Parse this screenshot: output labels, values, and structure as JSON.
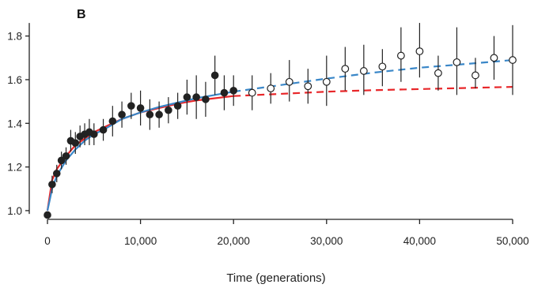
{
  "chart_data": {
    "type": "scatter",
    "panel_label": "B",
    "xlabel": "Time (generations)",
    "ylabel": "",
    "xlim": [
      0,
      50000
    ],
    "ylim": [
      0.96,
      1.9
    ],
    "x_ticks": [
      {
        "value": 0,
        "label": "0"
      },
      {
        "value": 10000,
        "label": "10,000"
      },
      {
        "value": 20000,
        "label": "20,000"
      },
      {
        "value": 30000,
        "label": "30,000"
      },
      {
        "value": 40000,
        "label": "40,000"
      },
      {
        "value": 50000,
        "label": "50,000"
      }
    ],
    "y_ticks": [
      {
        "value": 1.0,
        "label": "1.0"
      },
      {
        "value": 1.2,
        "label": "1.2"
      },
      {
        "value": 1.4,
        "label": "1.4"
      },
      {
        "value": 1.6,
        "label": "1.6"
      },
      {
        "value": 1.8,
        "label": "1.8"
      }
    ],
    "grid": false,
    "series": [
      {
        "marker": "filled-circle",
        "color": "#222222",
        "points": [
          {
            "x": 0,
            "y": 0.98,
            "lo": 0.98,
            "hi": 0.98
          },
          {
            "x": 500,
            "y": 1.12,
            "lo": 1.08,
            "hi": 1.16
          },
          {
            "x": 1000,
            "y": 1.17,
            "lo": 1.13,
            "hi": 1.21
          },
          {
            "x": 1500,
            "y": 1.23,
            "lo": 1.19,
            "hi": 1.27
          },
          {
            "x": 2000,
            "y": 1.25,
            "lo": 1.21,
            "hi": 1.29
          },
          {
            "x": 2500,
            "y": 1.32,
            "lo": 1.27,
            "hi": 1.37
          },
          {
            "x": 3000,
            "y": 1.31,
            "lo": 1.26,
            "hi": 1.36
          },
          {
            "x": 3500,
            "y": 1.34,
            "lo": 1.29,
            "hi": 1.39
          },
          {
            "x": 4000,
            "y": 1.35,
            "lo": 1.3,
            "hi": 1.4
          },
          {
            "x": 4500,
            "y": 1.36,
            "lo": 1.3,
            "hi": 1.42
          },
          {
            "x": 5000,
            "y": 1.35,
            "lo": 1.3,
            "hi": 1.4
          },
          {
            "x": 6000,
            "y": 1.37,
            "lo": 1.32,
            "hi": 1.42
          },
          {
            "x": 7000,
            "y": 1.41,
            "lo": 1.34,
            "hi": 1.48
          },
          {
            "x": 8000,
            "y": 1.44,
            "lo": 1.38,
            "hi": 1.5
          },
          {
            "x": 9000,
            "y": 1.48,
            "lo": 1.42,
            "hi": 1.54
          },
          {
            "x": 10000,
            "y": 1.47,
            "lo": 1.39,
            "hi": 1.55
          },
          {
            "x": 11000,
            "y": 1.44,
            "lo": 1.37,
            "hi": 1.51
          },
          {
            "x": 12000,
            "y": 1.44,
            "lo": 1.38,
            "hi": 1.5
          },
          {
            "x": 13000,
            "y": 1.46,
            "lo": 1.4,
            "hi": 1.52
          },
          {
            "x": 14000,
            "y": 1.48,
            "lo": 1.42,
            "hi": 1.54
          },
          {
            "x": 15000,
            "y": 1.52,
            "lo": 1.44,
            "hi": 1.6
          },
          {
            "x": 16000,
            "y": 1.52,
            "lo": 1.42,
            "hi": 1.62
          },
          {
            "x": 17000,
            "y": 1.51,
            "lo": 1.43,
            "hi": 1.59
          },
          {
            "x": 18000,
            "y": 1.62,
            "lo": 1.53,
            "hi": 1.71
          },
          {
            "x": 19000,
            "y": 1.54,
            "lo": 1.46,
            "hi": 1.62
          },
          {
            "x": 20000,
            "y": 1.55,
            "lo": 1.48,
            "hi": 1.62
          }
        ]
      },
      {
        "marker": "open-circle",
        "color": "#222222",
        "points": [
          {
            "x": 22000,
            "y": 1.54,
            "lo": 1.46,
            "hi": 1.62
          },
          {
            "x": 24000,
            "y": 1.56,
            "lo": 1.49,
            "hi": 1.63
          },
          {
            "x": 26000,
            "y": 1.59,
            "lo": 1.5,
            "hi": 1.69
          },
          {
            "x": 28000,
            "y": 1.57,
            "lo": 1.49,
            "hi": 1.65
          },
          {
            "x": 30000,
            "y": 1.59,
            "lo": 1.48,
            "hi": 1.71
          },
          {
            "x": 32000,
            "y": 1.65,
            "lo": 1.55,
            "hi": 1.75
          },
          {
            "x": 34000,
            "y": 1.64,
            "lo": 1.53,
            "hi": 1.76
          },
          {
            "x": 36000,
            "y": 1.66,
            "lo": 1.57,
            "hi": 1.74
          },
          {
            "x": 38000,
            "y": 1.71,
            "lo": 1.59,
            "hi": 1.84
          },
          {
            "x": 40000,
            "y": 1.73,
            "lo": 1.61,
            "hi": 1.86
          },
          {
            "x": 42000,
            "y": 1.63,
            "lo": 1.55,
            "hi": 1.71
          },
          {
            "x": 44000,
            "y": 1.68,
            "lo": 1.53,
            "hi": 1.84
          },
          {
            "x": 46000,
            "y": 1.62,
            "lo": 1.56,
            "hi": 1.7
          },
          {
            "x": 48000,
            "y": 1.7,
            "lo": 1.6,
            "hi": 1.8
          },
          {
            "x": 50000,
            "y": 1.69,
            "lo": 1.53,
            "hi": 1.85
          }
        ]
      }
    ],
    "curves": [
      {
        "color": "#e8272a",
        "style": "solid",
        "points": [
          [
            0,
            1.0
          ],
          [
            500,
            1.14
          ],
          [
            1000,
            1.19
          ],
          [
            2000,
            1.25
          ],
          [
            3000,
            1.3
          ],
          [
            4000,
            1.33
          ],
          [
            5000,
            1.36
          ],
          [
            6000,
            1.38
          ],
          [
            8000,
            1.42
          ],
          [
            10000,
            1.45
          ],
          [
            12000,
            1.47
          ],
          [
            14000,
            1.49
          ],
          [
            16000,
            1.505
          ],
          [
            18000,
            1.515
          ],
          [
            20000,
            1.525
          ]
        ]
      },
      {
        "color": "#e8272a",
        "style": "dashed",
        "points": [
          [
            20000,
            1.525
          ],
          [
            25000,
            1.535
          ],
          [
            30000,
            1.545
          ],
          [
            35000,
            1.552
          ],
          [
            40000,
            1.557
          ],
          [
            45000,
            1.562
          ],
          [
            50000,
            1.567
          ]
        ]
      },
      {
        "color": "#3a87c8",
        "style": "solid",
        "points": [
          [
            0,
            1.0
          ],
          [
            500,
            1.1
          ],
          [
            1000,
            1.16
          ],
          [
            2000,
            1.23
          ],
          [
            3000,
            1.28
          ],
          [
            4000,
            1.32
          ],
          [
            5000,
            1.35
          ],
          [
            6000,
            1.37
          ],
          [
            8000,
            1.42
          ],
          [
            10000,
            1.45
          ],
          [
            12000,
            1.475
          ],
          [
            14000,
            1.495
          ],
          [
            16000,
            1.515
          ],
          [
            18000,
            1.53
          ],
          [
            20000,
            1.545
          ]
        ]
      },
      {
        "color": "#3a87c8",
        "style": "dashed",
        "points": [
          [
            20000,
            1.545
          ],
          [
            25000,
            1.575
          ],
          [
            30000,
            1.605
          ],
          [
            35000,
            1.632
          ],
          [
            40000,
            1.655
          ],
          [
            45000,
            1.672
          ],
          [
            50000,
            1.69
          ]
        ]
      }
    ]
  }
}
